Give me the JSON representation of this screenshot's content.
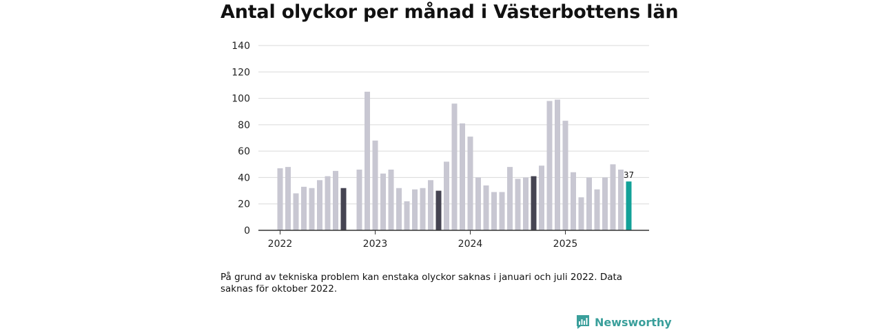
{
  "chart_data": {
    "type": "bar",
    "title": "Antal olyckor per månad i Västerbottens län",
    "xlabel": "",
    "ylabel": "",
    "ylim": [
      0,
      140
    ],
    "yticks": [
      0,
      20,
      40,
      60,
      80,
      100,
      120,
      140
    ],
    "x_tick_labels": [
      "2022",
      "2023",
      "2024",
      "2025"
    ],
    "grid": true,
    "categories": [
      "2022-01",
      "2022-02",
      "2022-03",
      "2022-04",
      "2022-05",
      "2022-06",
      "2022-07",
      "2022-08",
      "2022-09",
      "2022-10",
      "2022-11",
      "2022-12",
      "2023-01",
      "2023-02",
      "2023-03",
      "2023-04",
      "2023-05",
      "2023-06",
      "2023-07",
      "2023-08",
      "2023-09",
      "2023-10",
      "2023-11",
      "2023-12",
      "2024-01",
      "2024-02",
      "2024-03",
      "2024-04",
      "2024-05",
      "2024-06",
      "2024-07",
      "2024-08",
      "2024-09",
      "2024-10",
      "2024-11",
      "2024-12",
      "2025-01",
      "2025-02",
      "2025-03",
      "2025-04",
      "2025-05",
      "2025-06",
      "2025-07",
      "2025-08",
      "2025-09"
    ],
    "values": [
      47,
      48,
      28,
      33,
      32,
      38,
      41,
      45,
      32,
      null,
      46,
      105,
      68,
      43,
      46,
      32,
      22,
      31,
      32,
      38,
      30,
      52,
      96,
      81,
      71,
      40,
      34,
      29,
      29,
      48,
      39,
      40,
      41,
      49,
      98,
      99,
      83,
      44,
      25,
      40,
      31,
      40,
      50,
      46,
      37
    ],
    "highlight_september": [
      8,
      20,
      32
    ],
    "current_index": 44,
    "labels": [
      {
        "index": 44,
        "text": "37"
      }
    ],
    "colors": {
      "default": "#c8c7d2",
      "september": "#454452",
      "current": "#13a198",
      "grid": "#d9d9d9",
      "axis": "#333333"
    }
  },
  "footnote": "På grund av tekniska problem kan enstaka olyckor saknas i januari och juli 2022. Data saknas för oktober 2022.",
  "brand": {
    "name": "Newsworthy",
    "color": "#3a9f9b"
  }
}
